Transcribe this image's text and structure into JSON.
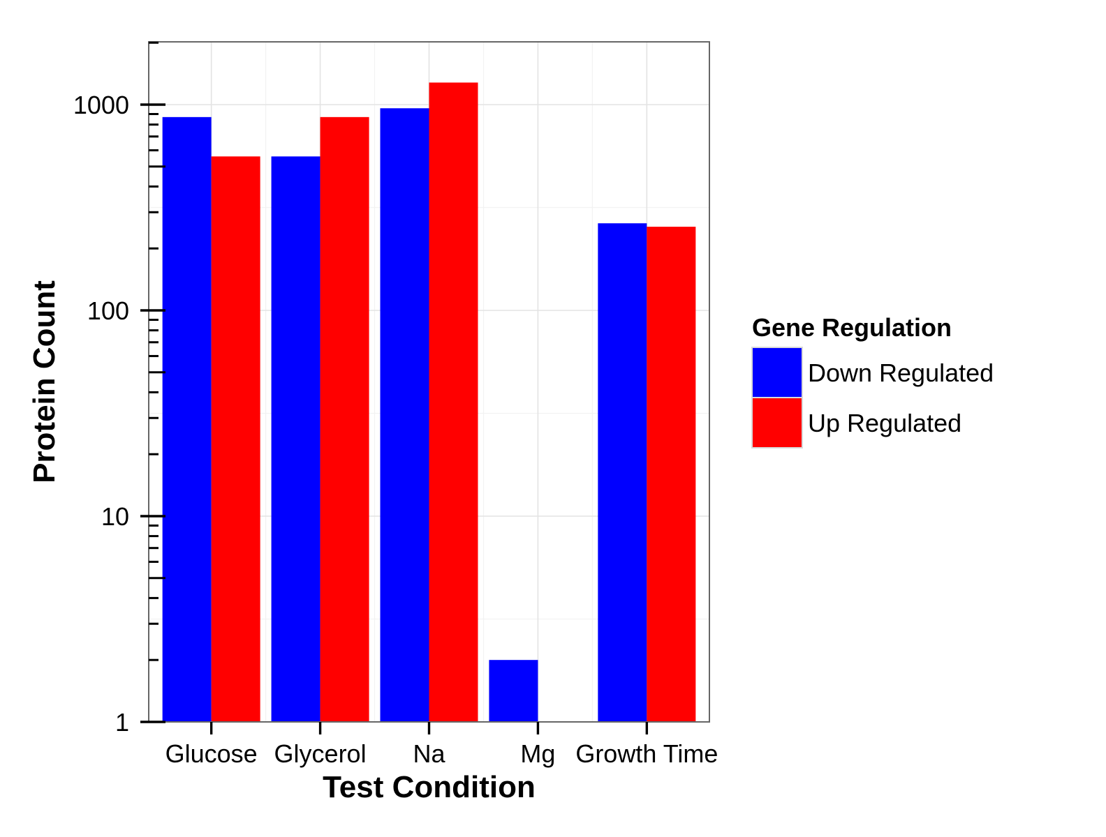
{
  "chart_data": {
    "type": "bar",
    "xlabel": "Test Condition",
    "ylabel": "Protein Count",
    "yscale": "log10",
    "ylim": [
      1,
      2000
    ],
    "y_ticks": [
      1,
      10,
      100,
      1000
    ],
    "y_tick_labels": [
      "1",
      "10",
      "100",
      "1000"
    ],
    "categories": [
      "Glucose",
      "Glycerol",
      "Na",
      "Mg",
      "Growth Time"
    ],
    "series": [
      {
        "name": "Down Regulated",
        "color": "#0000FF",
        "values": [
          870,
          560,
          960,
          2,
          265
        ]
      },
      {
        "name": "Up Regulated",
        "color": "#FF0000",
        "values": [
          560,
          870,
          1280,
          null,
          255
        ]
      }
    ],
    "grid": true,
    "legend": {
      "title": "Gene Regulation",
      "position": "right"
    }
  }
}
